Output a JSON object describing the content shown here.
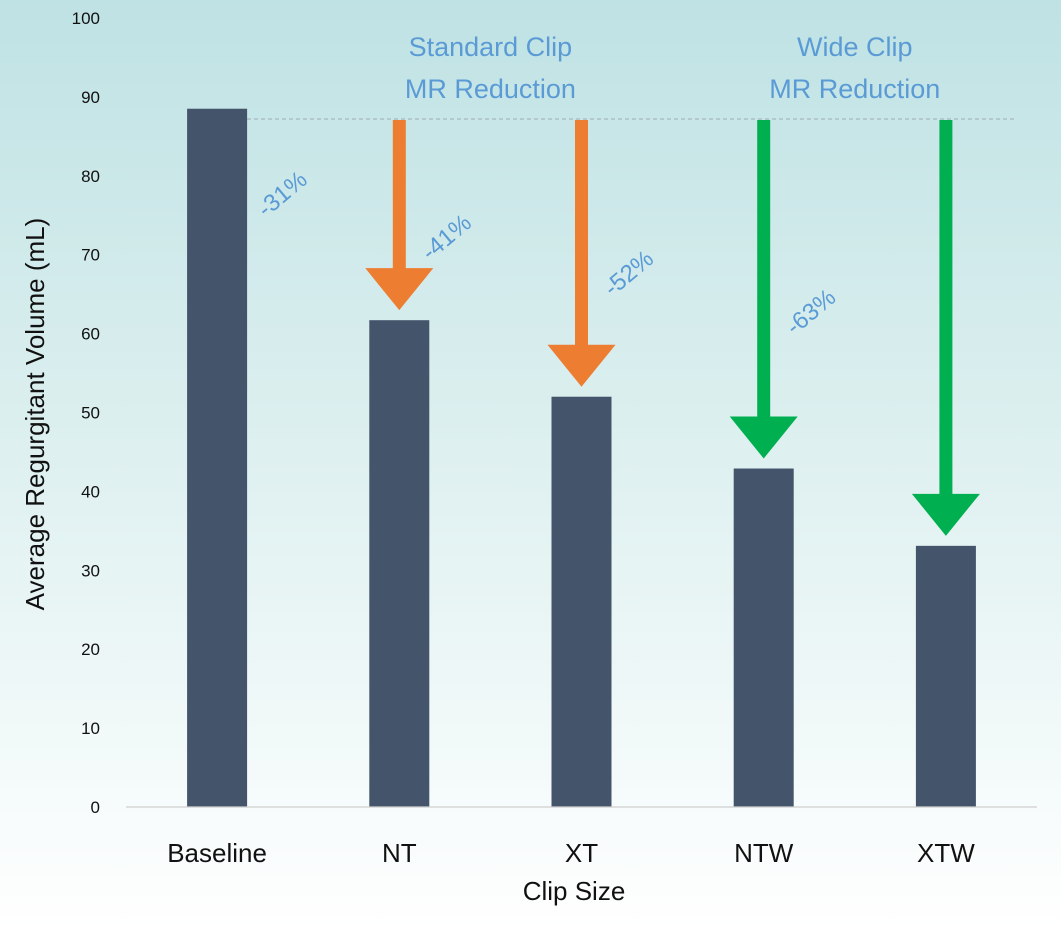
{
  "colors": {
    "bar": "#44546a",
    "standard_arrow": "#ed7d31",
    "wide_arrow": "#00b050",
    "annotation_text": "#5b9bd5",
    "reference_line": "#a9b6c3"
  },
  "chart_data": {
    "type": "bar",
    "title": "",
    "xlabel": "Clip Size",
    "ylabel": "Average Regurgitant Volume (mL)",
    "ylim": [
      0,
      100
    ],
    "yticks": [
      0,
      10,
      20,
      30,
      40,
      50,
      60,
      70,
      80,
      90,
      100
    ],
    "grid": false,
    "categories": [
      "Baseline",
      "NT",
      "XT",
      "NTW",
      "XTW"
    ],
    "values": [
      88.5,
      61.7,
      52,
      42.9,
      33.1
    ],
    "reference_line": {
      "y": 87.2,
      "style": "dashed"
    },
    "group_labels": [
      {
        "line1": "Standard Clip",
        "line2": "MR Reduction",
        "over": [
          "NT",
          "XT"
        ],
        "arrow_color": "standard_arrow"
      },
      {
        "line1": "Wide Clip",
        "line2": "MR Reduction",
        "over": [
          "NTW",
          "XTW"
        ],
        "arrow_color": "wide_arrow"
      }
    ],
    "annotations": [
      {
        "category": "NT",
        "text": "-31%",
        "arrow_color": "standard_arrow"
      },
      {
        "category": "XT",
        "text": "-41%",
        "arrow_color": "standard_arrow"
      },
      {
        "category": "NTW",
        "text": "-52%",
        "arrow_color": "wide_arrow"
      },
      {
        "category": "XTW",
        "text": "-63%",
        "arrow_color": "wide_arrow"
      }
    ]
  }
}
